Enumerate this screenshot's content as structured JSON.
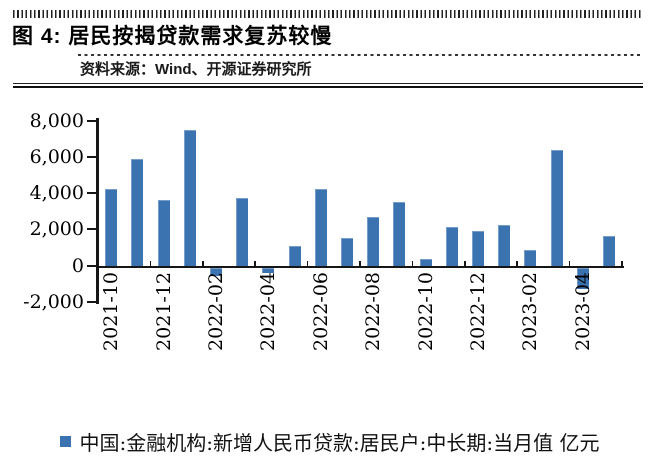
{
  "header": {
    "title": "图 4: 居民按揭贷款需求复苏较慢",
    "source": "资料来源：Wind、开源证券研究所"
  },
  "legend": {
    "marker_color": "#3b73b0",
    "label": "中国:金融机构:新增人民币贷款:居民户:中长期:当月值 亿元"
  },
  "chart_data": {
    "type": "bar",
    "title": "居民按揭贷款需求复苏较慢",
    "series_name": "中国:金融机构:新增人民币贷款:居民户:中长期:当月值",
    "unit": "亿元",
    "categories": [
      "2021-10",
      "2021-11",
      "2021-12",
      "2022-01",
      "2022-02",
      "2022-03",
      "2022-04",
      "2022-05",
      "2022-06",
      "2022-07",
      "2022-08",
      "2022-09",
      "2022-10",
      "2022-11",
      "2022-12",
      "2023-01",
      "2023-02",
      "2023-03",
      "2023-04",
      "2023-05"
    ],
    "values": [
      4200,
      5900,
      3600,
      7450,
      -450,
      3750,
      -300,
      1050,
      4200,
      1500,
      2650,
      3500,
      350,
      2100,
      1900,
      2250,
      850,
      6350,
      -1150,
      1650
    ],
    "x_tick_labels": [
      "2021-10",
      "2021-12",
      "2022-02",
      "2022-04",
      "2022-06",
      "2022-08",
      "2022-10",
      "2022-12",
      "2023-02",
      "2023-04"
    ],
    "x_label_interval": 2,
    "y_ticks": [
      8000,
      6000,
      4000,
      2000,
      0,
      -2000
    ],
    "ylim": [
      -2000,
      8000
    ],
    "bar_color": "#3b73b0",
    "grid": false,
    "legend_position": "bottom",
    "xlabel": "",
    "ylabel": ""
  }
}
